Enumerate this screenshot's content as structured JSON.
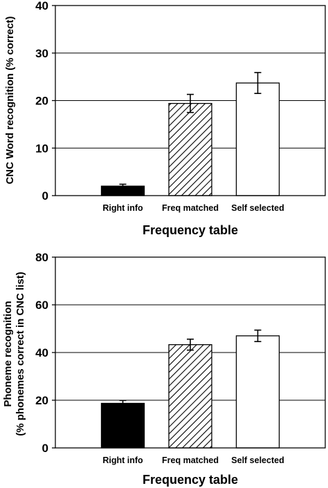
{
  "chart_data": [
    {
      "type": "bar",
      "categories": [
        "Right info",
        "Freq matched",
        "Self selected"
      ],
      "values": [
        2.0,
        19.4,
        23.7
      ],
      "errors": [
        0.4,
        1.9,
        2.2
      ],
      "fills": [
        "solid-black",
        "diagonal-hatch",
        "white"
      ],
      "xlabel": "Frequency table",
      "ylabel": "CNC Word recognition (% correct)",
      "ylim": [
        0,
        40
      ],
      "yticks": [
        0,
        10,
        20,
        30,
        40
      ],
      "grid": true
    },
    {
      "type": "bar",
      "categories": [
        "Right info",
        "Freq matched",
        "Self selected"
      ],
      "values": [
        18.7,
        43.3,
        47.0
      ],
      "errors": [
        1.2,
        2.3,
        2.4
      ],
      "fills": [
        "solid-black",
        "diagonal-hatch",
        "white"
      ],
      "xlabel": "Frequency table",
      "ylabel_line1": "Phoneme recognition",
      "ylabel_line2": "(% phonemes correct in CNC list)",
      "ylim": [
        0,
        80
      ],
      "yticks": [
        0,
        20,
        40,
        60,
        80
      ],
      "grid": true
    }
  ],
  "colors": {
    "bar_solid": "#000000",
    "bar_outline": "#000000",
    "grid": "#000000"
  }
}
